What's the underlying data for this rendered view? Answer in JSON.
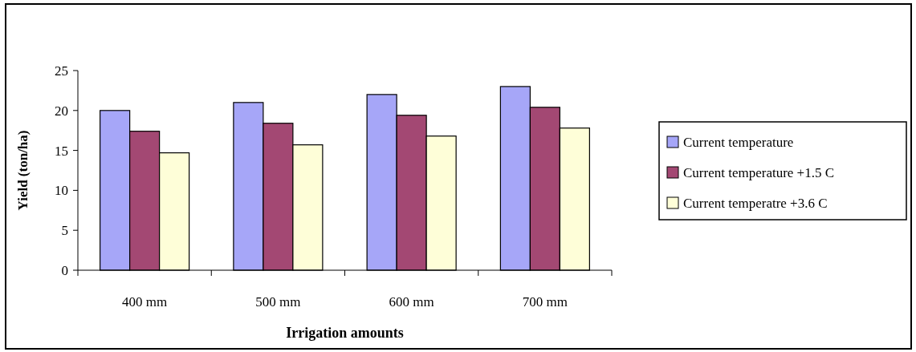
{
  "chart_data": {
    "type": "bar",
    "xlabel": "Irrigation amounts",
    "ylabel": "Yield (ton/ha)",
    "categories": [
      "400 mm",
      "500 mm",
      "600 mm",
      "700 mm"
    ],
    "series": [
      {
        "name": "Current temperature",
        "color": "#a6a6f8",
        "values": [
          20,
          21,
          22,
          23
        ]
      },
      {
        "name": "Current temperature +1.5 C",
        "color": "#a34873",
        "values": [
          17.4,
          18.4,
          19.4,
          20.4
        ]
      },
      {
        "name": "Current temperatre +3.6 C",
        "color": "#fefed8",
        "values": [
          14.7,
          15.7,
          16.8,
          17.8
        ]
      }
    ],
    "ylim": [
      0,
      25
    ],
    "yticks": [
      0,
      5,
      10,
      15,
      20,
      25
    ],
    "grid": false,
    "legend": "right"
  }
}
